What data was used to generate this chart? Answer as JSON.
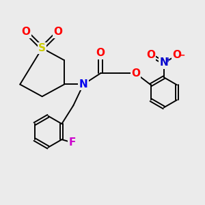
{
  "background_color": "#ebebeb",
  "bond_color": "#000000",
  "bond_width": 1.4,
  "atom_colors": {
    "S": "#cccc00",
    "O": "#ff0000",
    "N_amide": "#0000ee",
    "N_nitro": "#0000cc",
    "F": "#cc00cc",
    "C": "#000000"
  }
}
